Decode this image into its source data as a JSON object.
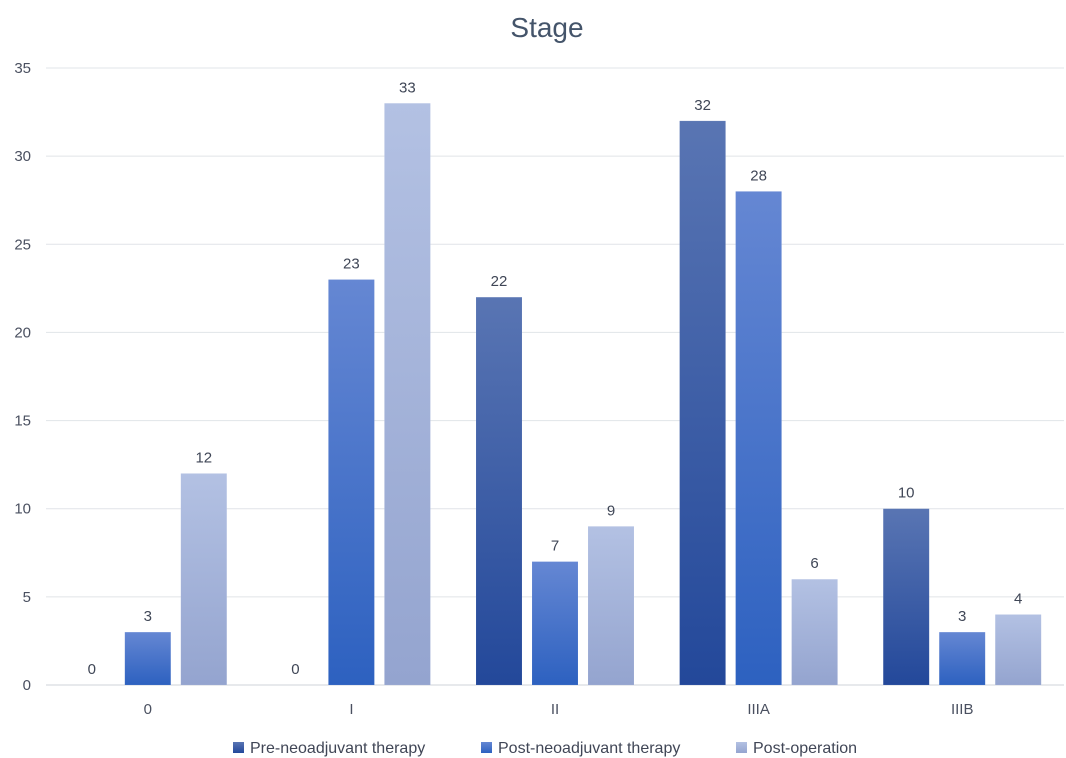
{
  "chart_data": {
    "type": "bar",
    "title": "Stage",
    "xlabel": "",
    "ylabel": "",
    "categories": [
      "0",
      "I",
      "II",
      "IIIA",
      "IIIB"
    ],
    "series": [
      {
        "name": "Pre-neoadjuvant therapy",
        "values": [
          0,
          0,
          22,
          32,
          10
        ],
        "color": "#2f55a4"
      },
      {
        "name": "Post-neoadjuvant therapy",
        "values": [
          3,
          23,
          7,
          28,
          3
        ],
        "color": "#4472c4"
      },
      {
        "name": "Post-operation",
        "values": [
          12,
          33,
          9,
          6,
          4
        ],
        "color": "#a6b4da"
      }
    ],
    "ylim": [
      0,
      35
    ],
    "yticks": [
      0,
      5,
      10,
      15,
      20,
      25,
      30,
      35
    ],
    "grid": true,
    "legend": "bottom",
    "data_labels": true
  }
}
